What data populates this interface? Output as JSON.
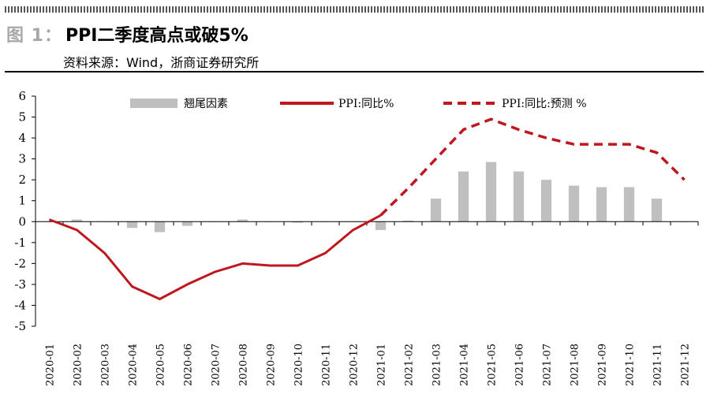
{
  "header": {
    "figure_label": "图 1：",
    "title": "PPI二季度高点或破5%",
    "source": "资料来源：Wind，浙商证券研究所"
  },
  "colors": {
    "bar": "#bfbfbf",
    "line": "#c0171f",
    "axis": "#000000",
    "hatch": "#555555",
    "figure_label": "#a8a8a8"
  },
  "chart_data": {
    "type": "bar+line",
    "title": "PPI二季度高点或破5%",
    "xlabel": "",
    "ylabel": "",
    "ylim": [
      -5,
      6
    ],
    "yticks": [
      6,
      5,
      4,
      3,
      2,
      1,
      0,
      -1,
      -2,
      -3,
      -4,
      -5
    ],
    "categories": [
      "2020-01",
      "2020-02",
      "2020-03",
      "2020-04",
      "2020-05",
      "2020-06",
      "2020-07",
      "2020-08",
      "2020-09",
      "2020-10",
      "2020-11",
      "2020-12",
      "2021-01",
      "2021-02",
      "2021-03",
      "2021-04",
      "2021-05",
      "2021-06",
      "2021-07",
      "2021-08",
      "2021-09",
      "2021-10",
      "2021-11",
      "2021-12"
    ],
    "legend_position": "top",
    "series": [
      {
        "name": "翘尾因素",
        "kind": "bar",
        "values": [
          0.0,
          0.1,
          0.0,
          -0.3,
          -0.5,
          -0.2,
          0.0,
          0.1,
          0.0,
          -0.05,
          0.0,
          0.0,
          -0.4,
          0.05,
          1.1,
          2.4,
          2.85,
          2.4,
          2.0,
          1.72,
          1.65,
          1.65,
          1.1,
          0.0
        ]
      },
      {
        "name": "PPI:同比%",
        "kind": "line",
        "style": "solid",
        "values": [
          0.1,
          -0.4,
          -1.5,
          -3.1,
          -3.7,
          -3.0,
          -2.4,
          -2.0,
          -2.1,
          -2.1,
          -1.5,
          -0.4,
          0.3,
          null,
          null,
          null,
          null,
          null,
          null,
          null,
          null,
          null,
          null,
          null
        ]
      },
      {
        "name": "PPI:同比:预测 %",
        "kind": "line",
        "style": "dashed",
        "values": [
          null,
          null,
          null,
          null,
          null,
          null,
          null,
          null,
          null,
          null,
          null,
          null,
          0.3,
          1.6,
          3.0,
          4.4,
          4.9,
          4.4,
          4.0,
          3.7,
          3.7,
          3.7,
          3.3,
          2.0
        ]
      }
    ]
  }
}
